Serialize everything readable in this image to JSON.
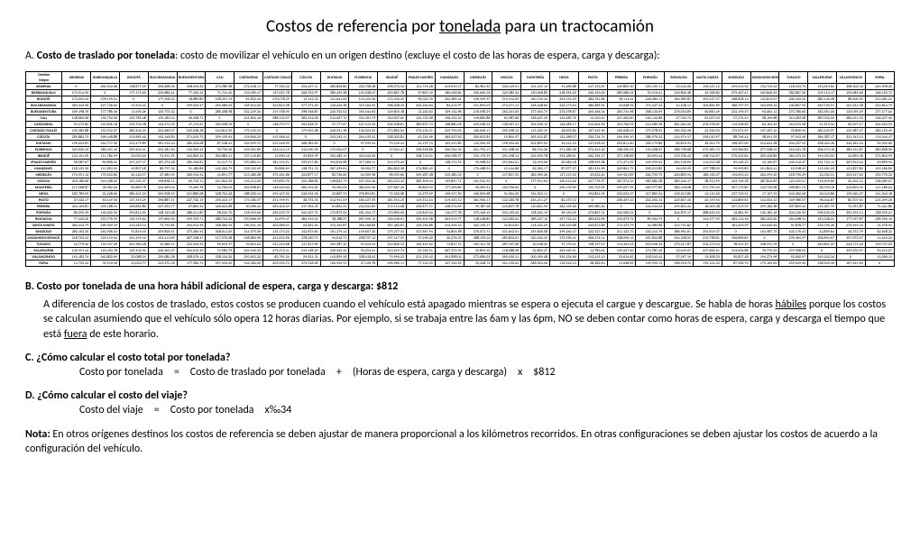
{
  "title_pre": "Costos de referencia por ",
  "title_u": "tonelada",
  "title_post": " para un tractocamión",
  "section_a_letter": "A.",
  "section_a_lead": "Costo de traslado por tonelada",
  "section_a_rest": ": costo de movilizar el vehículo en un origen destino (excluye el costo de las horas de espera, carga y descarga):",
  "table_corner_top": "Destino",
  "table_corner_bot": "Origen",
  "cities": [
    "ARMENIA",
    "BARRANQUILLA",
    "BOGOTÁ",
    "BUCARAMANGA",
    "BUENAVENTURA",
    "CALI",
    "CARTAGENA",
    "CARTAGO (VALLE)",
    "CÚCUTA",
    "DUITAMA",
    "FLORENCIA",
    "IBAGUÉ",
    "IPIALES-NARIÑO",
    "MANIZALES",
    "MEDELLÍN",
    "MOCOA",
    "MONTERÍA",
    "NEIVA",
    "PASTO",
    "PEREIRA",
    "POPAYÁN",
    "RIOHACHA",
    "SANTA MARTA",
    "SINCELEJO",
    "SOGAMOSO-BOYACÁ",
    "TUMACO",
    "VALLEDUPAR",
    "VILLAVICENCIO",
    "YOPAL"
  ],
  "rand_min": 10000,
  "rand_max": 400000,
  "section_b_letter": "B.",
  "section_b_hd": "Costo por tonelada de una hora hábil adicional de espera, carga y descarga: $812",
  "section_b_p1a": "A diferencia de los costos de traslado, estos costos se producen cuando el vehículo está apagado mientras se espera o ejecuta el cargue y descargue. Se habla de horas ",
  "section_b_p1u1": "hábiles",
  "section_b_p1b": " porque los costos se calculan asumiendo que el vehículo sólo opera 12 horas diarias. Por ejemplo, si se trabaja entre las 6am y las 6pm, NO se deben contar como horas de espera, carga y descarga el tiempo que está ",
  "section_b_p1u2": "fuera",
  "section_b_p1c": " de este horario.",
  "section_c_letter": "C.",
  "section_c_hd": "¿Cómo calcular el costo total por tonelada?",
  "section_c_formula": "Costo por tonelada = Costo de traslado por tonelada + (Horas de espera, carga y descarga) x $812",
  "section_d_letter": "D.",
  "section_d_hd": "¿Cómo calcular el costo del viaje?",
  "section_d_formula": "Costo del viaje = Costo por tonelada x‰34",
  "note_lead": "Nota:",
  "note_rest": " En otros orígenes destinos los costos de referencia se deben ajustar de manera proporcional a los kilómetros recorridos. En otras configuraciones se deben ajustar los costos de acuerdo a la configuración del vehículo."
}
